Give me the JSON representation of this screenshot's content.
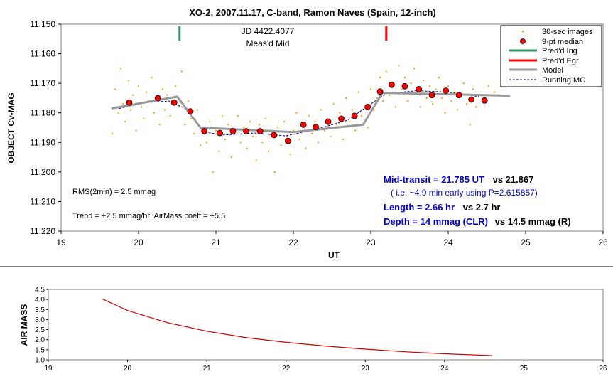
{
  "chart_data": [
    {
      "type": "scatter",
      "title": "XO-2, 2007.11.17, C-band, Ramon Naves (Spain, 12-inch)",
      "xlabel": "UT",
      "ylabel": "OBJECT Cv-MAG",
      "xlim": [
        19,
        26
      ],
      "ylim": [
        11.15,
        11.22
      ],
      "y_inverted": true,
      "grid": false,
      "legend_position": "top-right",
      "x_ticks": [
        "19",
        "20",
        "21",
        "22",
        "23",
        "24",
        "25",
        "26"
      ],
      "y_ticks": [
        "11.150",
        "11.160",
        "11.170",
        "11.180",
        "11.190",
        "11.200",
        "11.210",
        "11.220"
      ],
      "annotations": {
        "jd": "JD 4422.4077",
        "meas_mid": "Meas'd Mid",
        "rms": "RMS(2min) = 2.5 mmag",
        "trend": "Trend = +2.5 mmag/hr; AirMass coeff = +5.5",
        "mid_transit_a": "Mid-transit = 21.785 UT",
        "mid_transit_b": "vs 21.867",
        "early_note": "( i.e, ~4.9 min early using P=2.615857)",
        "length_a": "Length = 2.66 hr",
        "length_b": "vs 2.7 hr",
        "depth_a": "Depth = 14 mmag (CLR)",
        "depth_b": "vs 14.5 mmag (R)"
      },
      "legend": [
        {
          "key": "images",
          "label": "30-sec images"
        },
        {
          "key": "median",
          "label": "9-pt median"
        },
        {
          "key": "ing",
          "label": "Pred'd Ing"
        },
        {
          "key": "egr",
          "label": "Pred'd Egr"
        },
        {
          "key": "model",
          "label": "Model"
        },
        {
          "key": "running",
          "label": "Running MC"
        }
      ],
      "colors": {
        "images": "#ff9900",
        "median_fill": "#ff0000",
        "median_edge": "#000000",
        "ing": "#339966",
        "egr": "#ff0000",
        "model": "#999999",
        "running": "#000080",
        "blue_text": "#0000cc"
      },
      "pred_ingress": 20.53,
      "pred_egress": 23.2,
      "series": [
        {
          "name": "9-pt median",
          "x": [
            19.88,
            20.25,
            20.46,
            20.67,
            20.85,
            21.05,
            21.22,
            21.39,
            21.57,
            21.75,
            21.93,
            22.13,
            22.29,
            22.45,
            22.62,
            22.79,
            22.96,
            23.12,
            23.27,
            23.44,
            23.62,
            23.79,
            23.97,
            24.14,
            24.3,
            24.47
          ],
          "y": [
            11.1765,
            11.175,
            11.1765,
            11.1795,
            11.1862,
            11.1868,
            11.1862,
            11.1862,
            11.1862,
            11.1875,
            11.1895,
            11.184,
            11.1848,
            11.183,
            11.182,
            11.181,
            11.178,
            11.1728,
            11.1705,
            11.171,
            11.172,
            11.174,
            11.1725,
            11.174,
            11.1755,
            11.1758
          ]
        },
        {
          "name": "Model",
          "x": [
            19.65,
            20.5,
            20.8,
            22.0,
            22.9,
            23.15,
            24.8
          ],
          "y": [
            11.1785,
            11.1745,
            11.185,
            11.1865,
            11.184,
            11.1732,
            11.1742
          ]
        },
        {
          "name": "Running MC",
          "x": [
            19.75,
            20.1,
            20.4,
            20.6,
            20.85,
            21.1,
            21.5,
            21.9,
            22.3,
            22.7,
            23.0,
            23.2,
            23.6,
            24.0,
            24.4
          ],
          "y": [
            11.1785,
            11.1765,
            11.176,
            11.1785,
            11.1865,
            11.1875,
            11.1868,
            11.1878,
            11.1855,
            11.1825,
            11.177,
            11.1735,
            11.1725,
            11.173,
            11.1745
          ]
        },
        {
          "name": "30-sec images",
          "x": [
            19.66,
            19.7,
            19.74,
            19.77,
            19.8,
            19.83,
            19.87,
            19.9,
            19.93,
            19.97,
            20.0,
            20.04,
            20.07,
            20.1,
            20.14,
            20.17,
            20.2,
            20.24,
            20.27,
            20.31,
            20.34,
            20.37,
            20.41,
            20.44,
            20.48,
            20.52,
            20.56,
            20.6,
            20.64,
            20.68,
            20.72,
            20.76,
            20.8,
            20.84,
            20.88,
            20.92,
            20.96,
            21.0,
            21.04,
            21.08,
            21.12,
            21.16,
            21.2,
            21.24,
            21.28,
            21.32,
            21.36,
            21.4,
            21.44,
            21.48,
            21.52,
            21.56,
            21.6,
            21.64,
            21.68,
            21.72,
            21.76,
            21.8,
            21.84,
            21.88,
            21.92,
            21.96,
            22.0,
            22.04,
            22.08,
            22.12,
            22.16,
            22.2,
            22.24,
            22.28,
            22.32,
            22.36,
            22.4,
            22.44,
            22.48,
            22.52,
            22.56,
            22.6,
            22.64,
            22.68,
            22.72,
            22.76,
            22.8,
            22.84,
            22.88,
            22.92,
            22.96,
            23.0,
            23.04,
            23.08,
            23.12,
            23.16,
            23.2,
            23.24,
            23.28,
            23.32,
            23.36,
            23.4,
            23.44,
            23.48,
            23.52,
            23.56,
            23.6,
            23.64,
            23.68,
            23.72,
            23.76,
            23.8,
            23.84,
            23.88,
            23.92,
            23.96,
            24.0,
            24.04,
            24.08,
            24.12,
            24.16,
            24.2,
            24.24,
            24.28,
            24.32,
            24.36,
            24.4,
            24.44,
            24.48,
            24.52,
            24.56,
            24.6
          ],
          "y": [
            11.187,
            11.172,
            11.18,
            11.165,
            11.177,
            11.183,
            11.169,
            11.179,
            11.174,
            11.186,
            11.171,
            11.178,
            11.182,
            11.173,
            11.176,
            11.168,
            11.18,
            11.175,
            11.184,
            11.172,
            11.179,
            11.174,
            11.181,
            11.176,
            11.171,
            11.178,
            11.166,
            11.184,
            11.176,
            11.182,
            11.187,
            11.179,
            11.191,
            11.185,
            11.19,
            11.183,
            11.2,
            11.186,
            11.193,
            11.181,
            11.189,
            11.184,
            11.195,
            11.187,
            11.181,
            11.19,
            11.185,
            11.192,
            11.183,
            11.188,
            11.196,
            11.184,
            11.19,
            11.182,
            11.193,
            11.186,
            11.2,
            11.185,
            11.191,
            11.183,
            11.188,
            11.194,
            11.186,
            11.18,
            11.189,
            11.184,
            11.192,
            11.181,
            11.187,
            11.183,
            11.19,
            11.179,
            11.186,
            11.182,
            11.188,
            11.177,
            11.184,
            11.18,
            11.189,
            11.175,
            11.183,
            11.179,
            11.186,
            11.173,
            11.181,
            11.178,
            11.185,
            11.172,
            11.179,
            11.175,
            11.168,
            11.176,
            11.166,
            11.174,
            11.17,
            11.178,
            11.164,
            11.172,
            11.168,
            11.176,
            11.17,
            11.165,
            11.173,
            11.178,
            11.169,
            11.175,
            11.171,
            11.177,
            11.172,
            11.168,
            11.175,
            11.18,
            11.171,
            11.176,
            11.173,
            11.179,
            11.174,
            11.17,
            11.177,
            11.184,
            11.172,
            11.178,
            11.174,
            11.176,
            11.175,
            11.171,
            11.174,
            11.173
          ]
        }
      ]
    },
    {
      "type": "line",
      "title": "",
      "xlabel": "",
      "ylabel": "AIR MASS",
      "xlim": [
        19,
        26
      ],
      "ylim": [
        1.0,
        4.5
      ],
      "grid": false,
      "x_ticks": [
        "19",
        "20",
        "21",
        "22",
        "23",
        "24",
        "25",
        "26"
      ],
      "y_ticks": [
        "1.0",
        "1.5",
        "2.0",
        "2.5",
        "3.0",
        "3.5",
        "4.0",
        "4.5"
      ],
      "line_color": "#cc0000",
      "series": [
        {
          "x": [
            19.68,
            20.0,
            20.5,
            21.0,
            21.5,
            22.0,
            22.5,
            23.0,
            23.5,
            24.0,
            24.6
          ],
          "y": [
            4.03,
            3.45,
            2.85,
            2.42,
            2.1,
            1.87,
            1.68,
            1.53,
            1.4,
            1.3,
            1.21
          ]
        }
      ]
    }
  ]
}
